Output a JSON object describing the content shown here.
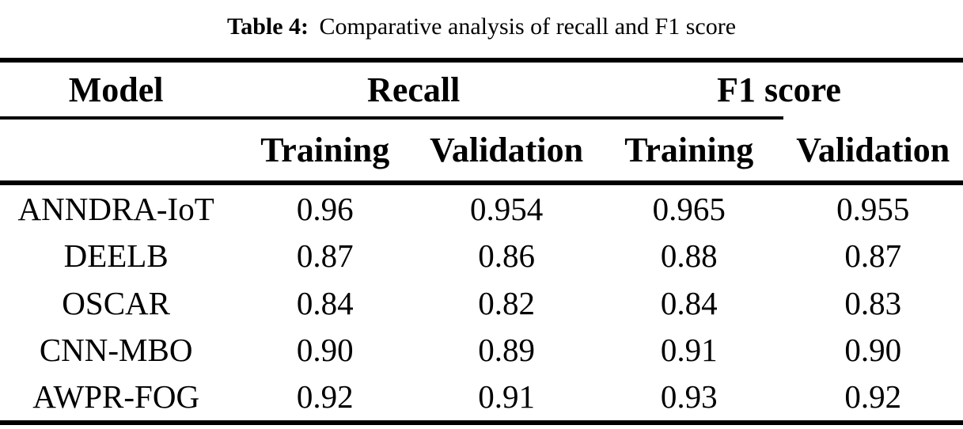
{
  "caption": {
    "label": "Table 4:",
    "text": "Comparative analysis of recall and F1 score"
  },
  "colors": {
    "text": "#000000",
    "background": "#ffffff",
    "rule": "#000000"
  },
  "table": {
    "model_header": "Model",
    "groups": [
      {
        "label": "Recall"
      },
      {
        "label": "F1 score"
      }
    ],
    "sub_headers": [
      "Training",
      "Validation",
      "Training",
      "Validation"
    ],
    "rows": [
      {
        "model": "ANNDRA-IoT",
        "values": [
          "0.96",
          "0.954",
          "0.965",
          "0.955"
        ]
      },
      {
        "model": "DEELB",
        "values": [
          "0.87",
          "0.86",
          "0.88",
          "0.87"
        ]
      },
      {
        "model": "OSCAR",
        "values": [
          "0.84",
          "0.82",
          "0.84",
          "0.83"
        ]
      },
      {
        "model": "CNN-MBO",
        "values": [
          "0.90",
          "0.89",
          "0.91",
          "0.90"
        ]
      },
      {
        "model": "AWPR-FOG",
        "values": [
          "0.92",
          "0.91",
          "0.93",
          "0.92"
        ]
      }
    ]
  }
}
